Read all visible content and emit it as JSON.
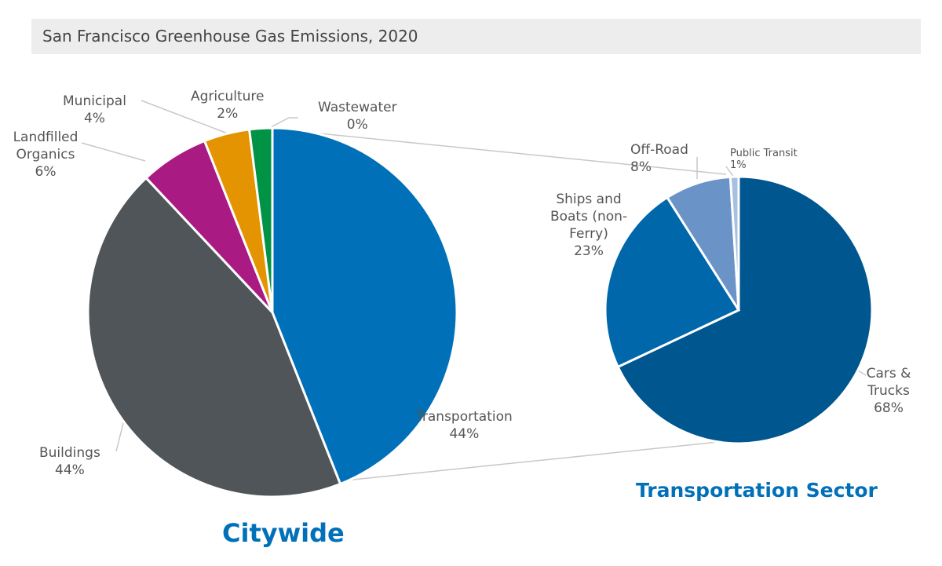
{
  "title": "San Francisco Greenhouse Gas Emissions, 2020",
  "chart_data": [
    {
      "type": "pie",
      "title": "Citywide",
      "slices": [
        {
          "label": "Transportation",
          "value": 44,
          "pct": "44%",
          "color": "#0070b8"
        },
        {
          "label": "Buildings",
          "value": 44,
          "pct": "44%",
          "color": "#4f5558"
        },
        {
          "label": "Landfilled Organics",
          "value": 6,
          "pct": "6%",
          "color": "#a91b83"
        },
        {
          "label": "Municipal",
          "value": 4,
          "pct": "4%",
          "color": "#e39400"
        },
        {
          "label": "Agriculture",
          "value": 2,
          "pct": "2%",
          "color": "#009245"
        },
        {
          "label": "Wastewater",
          "value": 0,
          "pct": "0%",
          "color": "#6cb33f"
        }
      ]
    },
    {
      "type": "pie",
      "title": "Transportation Sector",
      "slices": [
        {
          "label": "Cars & Trucks",
          "value": 68,
          "pct": "68%",
          "color": "#00568f"
        },
        {
          "label": "Ships and Boats (non-Ferry)",
          "value": 23,
          "pct": "23%",
          "color": "#0067ab"
        },
        {
          "label": "Off-Road",
          "value": 8,
          "pct": "8%",
          "color": "#6a93c8"
        },
        {
          "label": "Public Transit",
          "value": 1,
          "pct": "1%",
          "color": "#a9bfe0"
        }
      ]
    }
  ]
}
